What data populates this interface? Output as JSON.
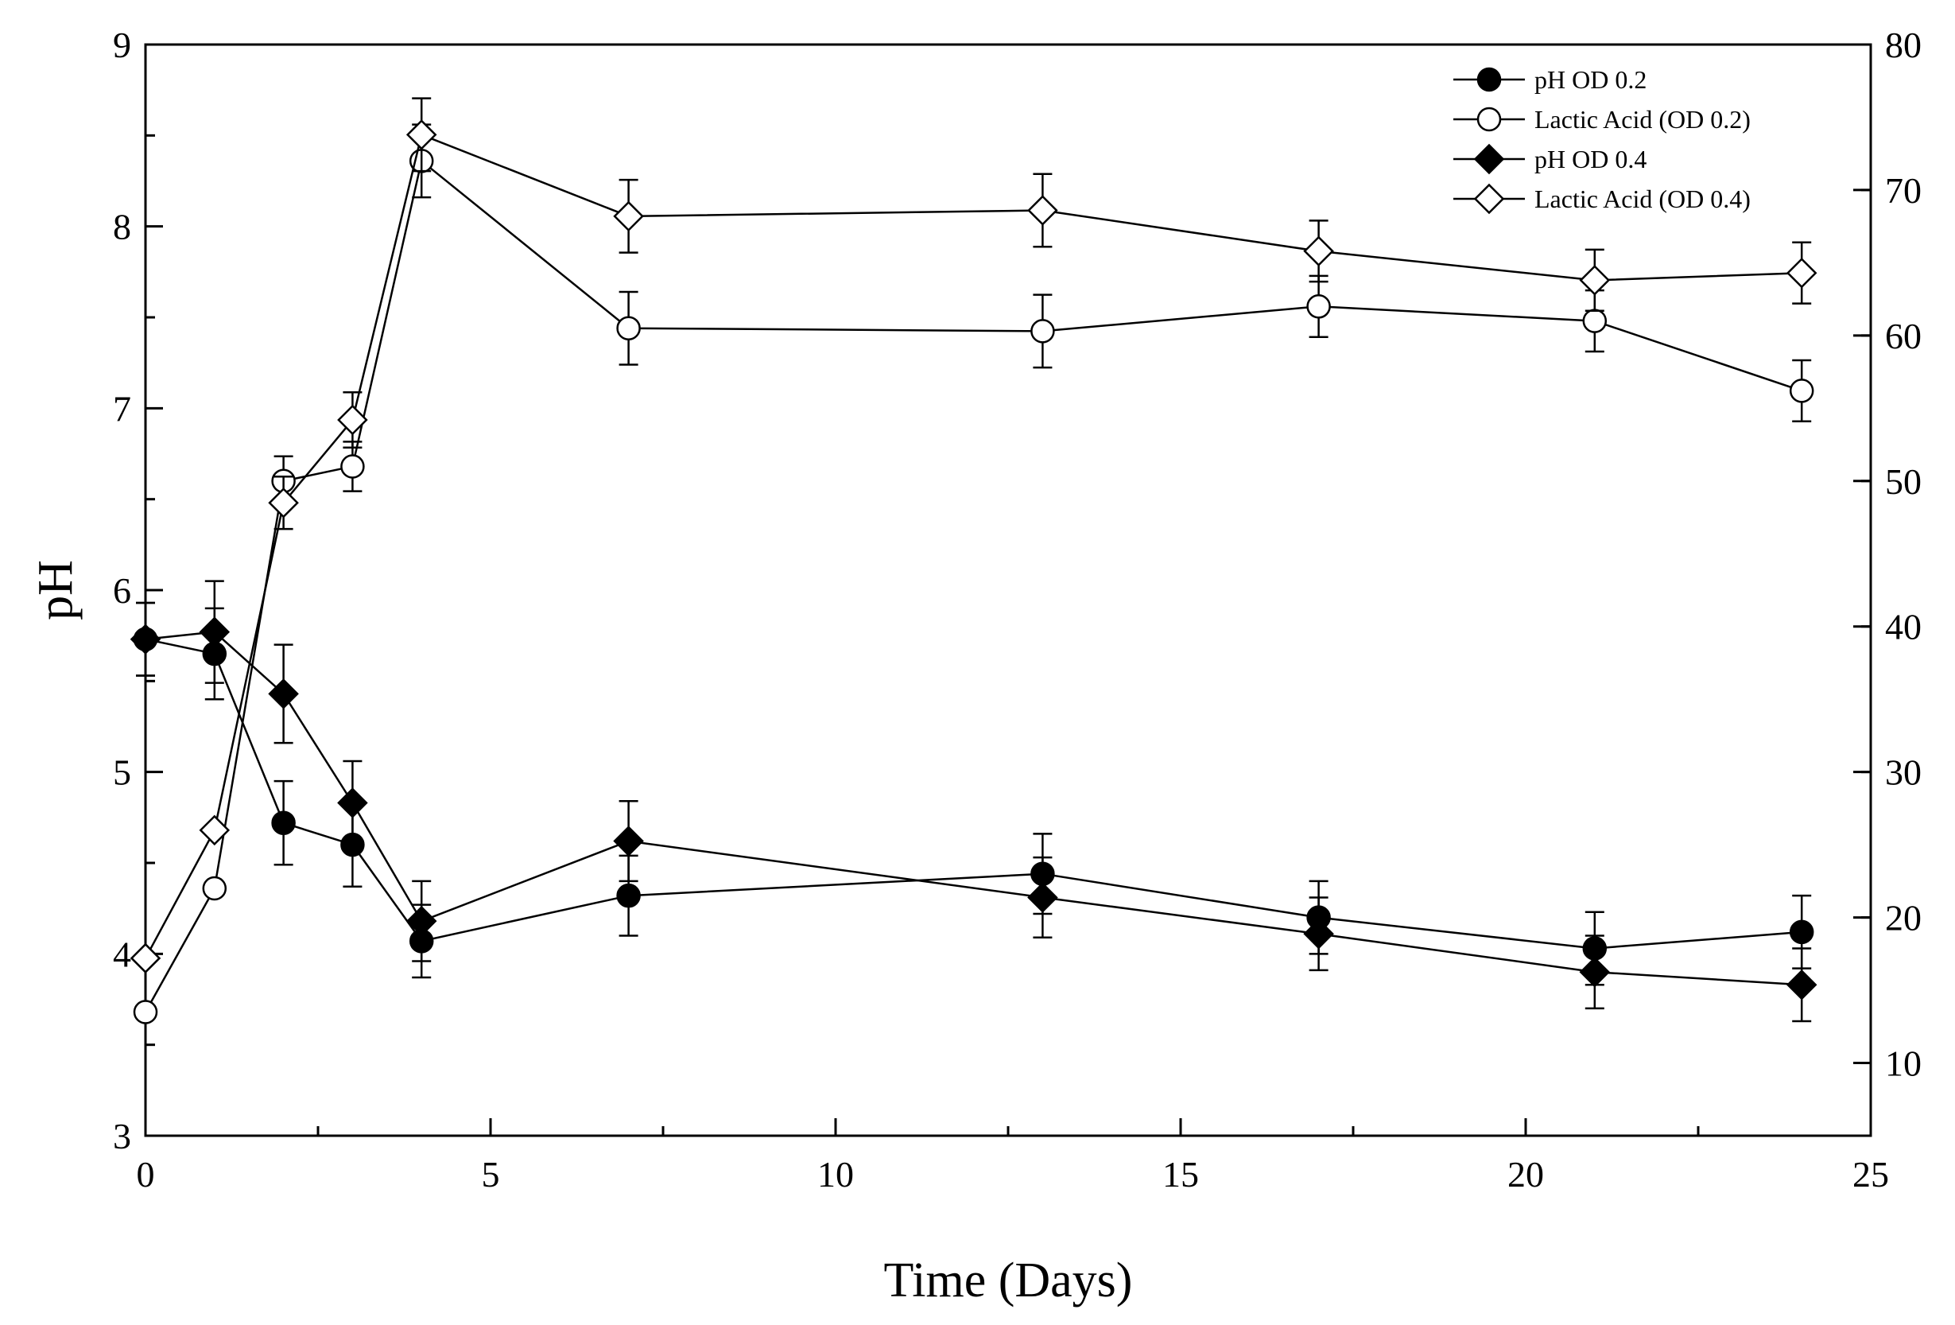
{
  "chart_data": {
    "type": "line",
    "title": "",
    "xlabel": "Time (Days)",
    "ylabel": "pH",
    "y2label": "",
    "xlim": [
      0,
      25
    ],
    "ylim": [
      3,
      9
    ],
    "y2lim": [
      5,
      80
    ],
    "xticks": [
      0,
      5,
      10,
      15,
      20,
      25
    ],
    "yticks": [
      3,
      4,
      5,
      6,
      7,
      8,
      9
    ],
    "y2ticks": [
      10,
      20,
      30,
      40,
      50,
      60,
      70,
      80
    ],
    "grid": false,
    "legend_position": "top-right",
    "series": [
      {
        "name": "pH OD 0.2",
        "axis": "left",
        "marker": "circle",
        "filled": true,
        "x": [
          0,
          1,
          2,
          3,
          4,
          7,
          13,
          17,
          21,
          24
        ],
        "y": [
          5.73,
          5.65,
          4.72,
          4.6,
          4.07,
          4.32,
          4.44,
          4.2,
          4.03,
          4.12
        ],
        "err": [
          0.2,
          0.25,
          0.23,
          0.23,
          0.2,
          0.22,
          0.22,
          0.2,
          0.2,
          0.2
        ]
      },
      {
        "name": "Lactic Acid (OD 0.2)",
        "axis": "right",
        "marker": "circle",
        "filled": false,
        "x": [
          0,
          1,
          2,
          3,
          4,
          7,
          13,
          17,
          21,
          24
        ],
        "y": [
          13.5,
          22,
          50,
          51,
          72,
          60.5,
          60.3,
          62,
          61,
          56.2
        ],
        "err": [
          0,
          0,
          1.7,
          1.7,
          2.5,
          2.5,
          2.5,
          2.1,
          2.1,
          2.1
        ]
      },
      {
        "name": "pH OD 0.4",
        "axis": "left",
        "marker": "diamond",
        "filled": true,
        "x": [
          0,
          1,
          2,
          3,
          4,
          7,
          13,
          17,
          21,
          24
        ],
        "y": [
          5.73,
          5.77,
          5.43,
          4.83,
          4.18,
          4.62,
          4.31,
          4.11,
          3.9,
          3.83
        ],
        "err": [
          0.2,
          0.28,
          0.27,
          0.23,
          0.22,
          0.22,
          0.22,
          0.2,
          0.2,
          0.2
        ]
      },
      {
        "name": "Lactic Acid (OD 0.4)",
        "axis": "right",
        "marker": "diamond",
        "filled": false,
        "x": [
          0,
          1,
          2,
          3,
          4,
          7,
          13,
          17,
          21,
          24
        ],
        "y": [
          17.2,
          26,
          48.5,
          54.2,
          73.8,
          68.2,
          68.6,
          65.8,
          63.8,
          64.3
        ],
        "err": [
          0,
          0,
          1.8,
          1.9,
          2.5,
          2.5,
          2.5,
          2.1,
          2.1,
          2.1
        ]
      }
    ]
  }
}
